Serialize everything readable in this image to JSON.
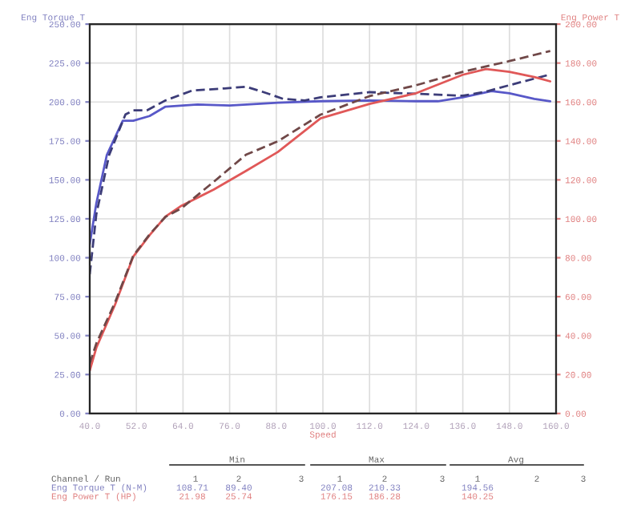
{
  "chart_data": {
    "type": "line",
    "ylabel": "Eng Torque T",
    "y2label": "Eng Power T",
    "xlabel": "Speed",
    "xlim": [
      40,
      160
    ],
    "xticks": [
      {
        "value": 40,
        "label": "40.0"
      },
      {
        "value": 52,
        "label": "52.0"
      },
      {
        "value": 64,
        "label": "64.0"
      },
      {
        "value": 76,
        "label": "76.0"
      },
      {
        "value": 88,
        "label": "88.0"
      },
      {
        "value": 100,
        "label": "100.0"
      },
      {
        "value": 112,
        "label": "112.0"
      },
      {
        "value": 124,
        "label": "124.0"
      },
      {
        "value": 136,
        "label": "136.0"
      },
      {
        "value": 148,
        "label": "148.0"
      },
      {
        "value": 160,
        "label": "160.0"
      }
    ],
    "ylim": [
      0,
      250
    ],
    "yticks": [
      {
        "value": 0,
        "label": "0.00"
      },
      {
        "value": 25,
        "label": "25.00"
      },
      {
        "value": 50,
        "label": "50.00"
      },
      {
        "value": 75,
        "label": "75.00"
      },
      {
        "value": 100,
        "label": "100.00"
      },
      {
        "value": 125,
        "label": "125.00"
      },
      {
        "value": 150,
        "label": "150.00"
      },
      {
        "value": 175,
        "label": "175.00"
      },
      {
        "value": 200,
        "label": "200.00"
      },
      {
        "value": 225,
        "label": "225.00"
      },
      {
        "value": 250,
        "label": "250.00"
      }
    ],
    "y2lim": [
      0,
      200
    ],
    "y2ticks": [
      {
        "value": 0,
        "label": "0.00"
      },
      {
        "value": 20,
        "label": "20.00"
      },
      {
        "value": 40,
        "label": "40.00"
      },
      {
        "value": 60,
        "label": "60.00"
      },
      {
        "value": 80,
        "label": "80.00"
      },
      {
        "value": 100,
        "label": "100.00"
      },
      {
        "value": 120,
        "label": "120.00"
      },
      {
        "value": 140,
        "label": "140.00"
      },
      {
        "value": 160,
        "label": "160.00"
      },
      {
        "value": 180,
        "label": "180.00"
      },
      {
        "value": 200,
        "label": "200.00"
      }
    ],
    "grid": true,
    "marker": "none",
    "series": [
      {
        "color": "#5858c8",
        "line_style": "solid",
        "x": [
          40,
          41.7,
          44.4,
          48.5,
          51.2,
          55.4,
          59.5,
          67.7,
          76,
          88.4,
          99.4,
          112,
          124,
          129.6,
          136,
          143.4,
          148,
          154.4,
          158.5
        ],
        "values": [
          108.7,
          135,
          166,
          188,
          188,
          191,
          197,
          198.4,
          197.7,
          199.5,
          200.5,
          201,
          200.5,
          200.5,
          203,
          207,
          205.6,
          202,
          200.5
        ]
      },
      {
        "color": "#3c3c78",
        "line_style": "dashed",
        "x": [
          40,
          41.7,
          45,
          49.2,
          51.2,
          54.7,
          59.5,
          66.4,
          74.7,
          80.2,
          84.3,
          89.8,
          95.3,
          99.4,
          112,
          124,
          136,
          142,
          148,
          154.4,
          158.5
        ],
        "values": [
          89.4,
          128,
          166,
          192,
          194.6,
          194.6,
          201,
          207.4,
          208.7,
          209.8,
          206.7,
          202,
          201,
          203,
          206.3,
          205.3,
          204,
          206.7,
          210.8,
          215,
          217.7
        ]
      },
      {
        "color": "#e05858",
        "line_style": "solid",
        "axis": "y2",
        "x": [
          40,
          41.7,
          46.5,
          51.2,
          55.4,
          59.5,
          63.6,
          71.9,
          80.2,
          88.4,
          99.4,
          112,
          124,
          136,
          142,
          148,
          154.4,
          158.5
        ],
        "values": [
          22,
          33.8,
          55.8,
          80.6,
          91.6,
          101.2,
          106.7,
          115,
          124.6,
          134.3,
          151.6,
          159,
          164.5,
          174,
          176.9,
          175.5,
          172.8,
          170.6
        ]
      },
      {
        "color": "#704848",
        "line_style": "dashed",
        "axis": "y2",
        "x": [
          40,
          41.7,
          46.5,
          51.2,
          55.4,
          59.5,
          63.6,
          71.9,
          80.2,
          88.4,
          99.4,
          112,
          124,
          136,
          148,
          158.5
        ],
        "values": [
          25.7,
          36,
          57,
          81,
          92,
          101,
          105.4,
          119,
          132.9,
          139.8,
          153.5,
          163,
          168.6,
          175.5,
          181,
          186.2
        ]
      }
    ],
    "annotations": [
      "Min",
      "Max",
      "Avg",
      "Channel / Run",
      "1",
      "2",
      "3",
      "1",
      "2",
      "3",
      "1",
      "2",
      "3",
      "Eng Torque T (N-M)",
      "108.71",
      "89.40",
      "207.08",
      "210.33",
      "194.56",
      "Eng Power T (HP)",
      "21.98",
      "25.74",
      "176.15",
      "186.28",
      "140.25"
    ]
  }
}
